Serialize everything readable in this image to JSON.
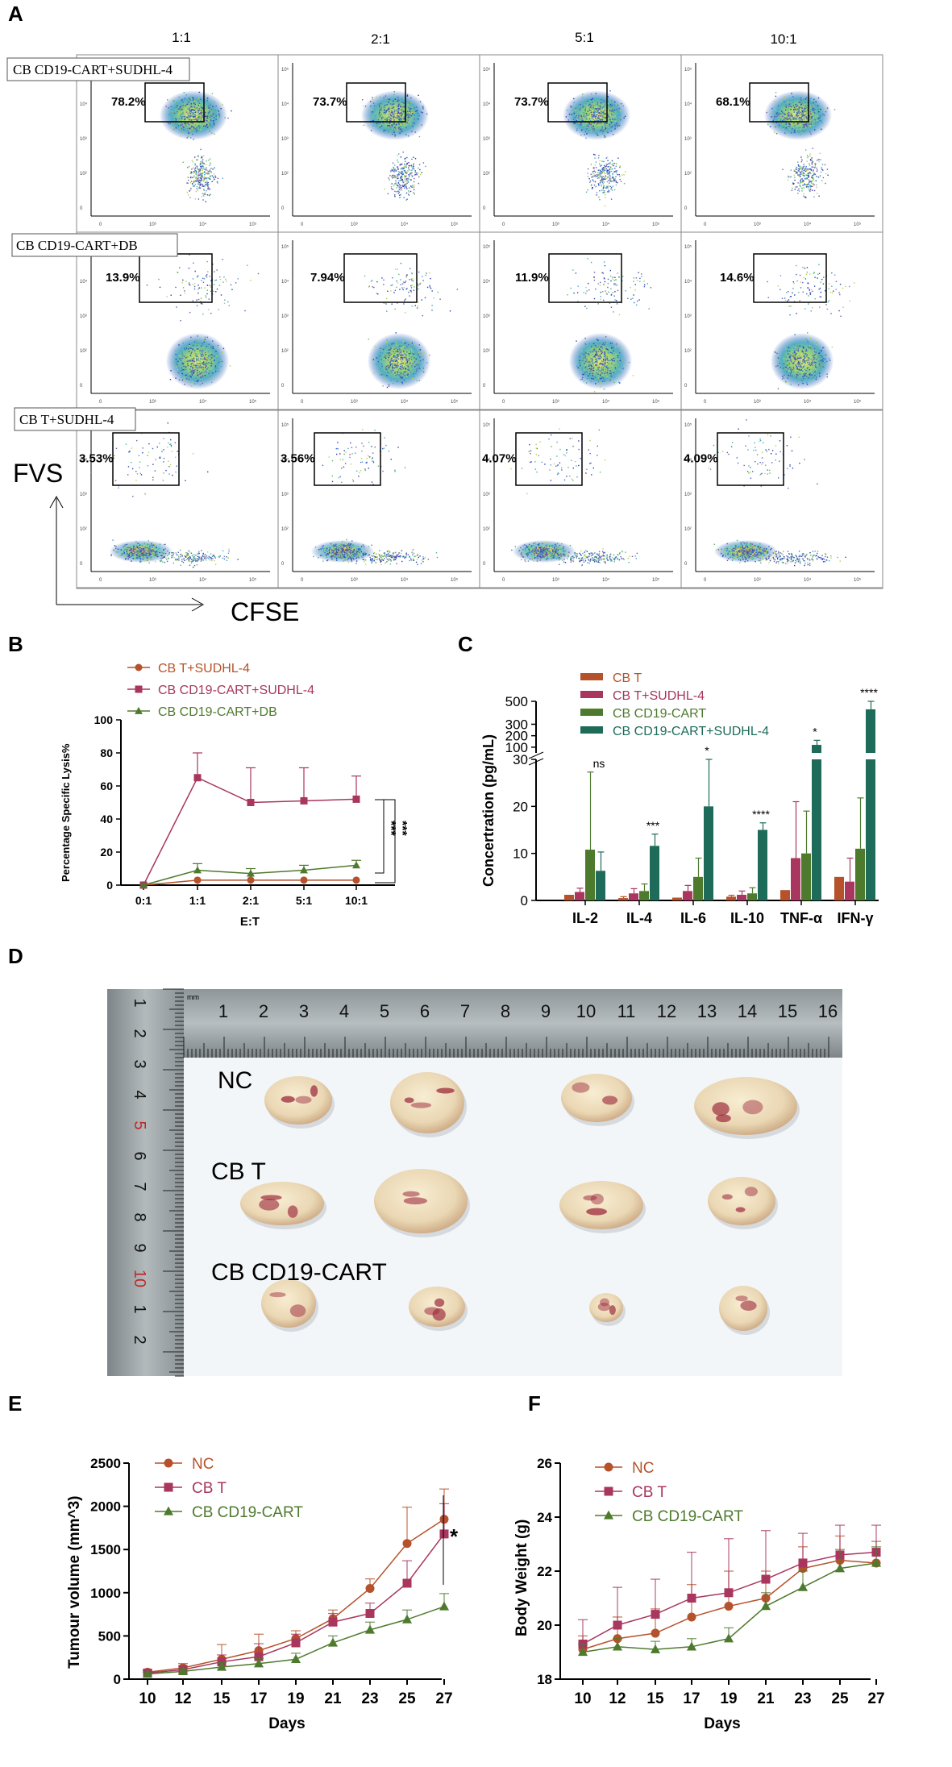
{
  "colors": {
    "orange": "#B5522B",
    "magenta": "#A8365E",
    "olive": "#4E7A2E",
    "teal": "#1E6B5A",
    "darkred": "#9E2A2A"
  },
  "panelA": {
    "letter": "A",
    "columns": [
      "1:1",
      "2:1",
      "5:1",
      "10:1"
    ],
    "rows": [
      {
        "label": "CB CD19-CART+SUDHL-4",
        "percents": [
          "78.2%",
          "73.7%",
          "73.7%",
          "68.1%"
        ],
        "pattern": "high"
      },
      {
        "label": "CB CD19-CART+DB",
        "percents": [
          "13.9%",
          "7.94%",
          "11.9%",
          "14.6%"
        ],
        "pattern": "mid"
      },
      {
        "label": "CB T+SUDHL-4",
        "percents": [
          "3.53%",
          "3.56%",
          "4.07%",
          "4.09%"
        ],
        "pattern": "low"
      }
    ],
    "yaxis": "FVS",
    "xaxis": "CFSE",
    "ticks": {
      "x": [
        "0",
        "10³",
        "10⁴",
        "10⁵"
      ],
      "y": [
        "10⁵",
        "10⁴",
        "10³",
        "10²",
        "0"
      ]
    }
  },
  "panelB": {
    "letter": "B",
    "chart_data": {
      "type": "line",
      "categories": [
        "0:1",
        "1:1",
        "2:1",
        "5:1",
        "10:1"
      ],
      "xlabel": "E:T",
      "ylabel": "Percentage Specific Lysis%",
      "ylim": [
        0,
        100
      ],
      "yticks": [
        0,
        20,
        40,
        60,
        80,
        100
      ],
      "series": [
        {
          "name": "CB T+SUDHL-4",
          "values": [
            0,
            3,
            3,
            3,
            3
          ],
          "err": [
            0,
            0,
            0,
            0,
            0
          ],
          "color": "#B5522B",
          "marker": "circle"
        },
        {
          "name": "CB CD19-CART+SUDHL-4",
          "values": [
            0,
            65,
            50,
            51,
            52
          ],
          "err": [
            0,
            15,
            21,
            20,
            14
          ],
          "color": "#A8365E",
          "marker": "square"
        },
        {
          "name": "CB CD19-CART+DB",
          "values": [
            0,
            9,
            7,
            9,
            12
          ],
          "err": [
            0,
            4,
            3,
            3,
            3
          ],
          "color": "#4E7A2E",
          "marker": "triangle"
        }
      ],
      "significance": [
        "***",
        "***"
      ]
    }
  },
  "panelC": {
    "letter": "C",
    "chart_data": {
      "type": "bar",
      "categories": [
        "IL-2",
        "IL-4",
        "IL-6",
        "IL-10",
        "TNF-α",
        "IFN-γ"
      ],
      "ylabel": "Concertration (pg/mL)",
      "lower_ticks": [
        "0",
        "10",
        "20",
        "30"
      ],
      "upper_ticks": [
        "100",
        "200",
        "300",
        "500"
      ],
      "series": [
        {
          "name": "CB T",
          "values": [
            1.2,
            0.5,
            0.6,
            0.8,
            2.2,
            5
          ],
          "err": [
            0,
            0.3,
            0,
            0.3,
            0,
            0
          ],
          "color": "#B5522B"
        },
        {
          "name": "CB T+SUDHL-4",
          "values": [
            1.8,
            1.5,
            2,
            1.2,
            9,
            4
          ],
          "err": [
            0.8,
            1,
            1.2,
            0.8,
            12,
            5
          ],
          "color": "#A8365E"
        },
        {
          "name": "CB CD19-CART",
          "values": [
            10.8,
            2,
            5,
            1.5,
            10,
            11
          ],
          "err": [
            16.5,
            1.5,
            4,
            1.2,
            9,
            10.8
          ],
          "color": "#4E7A2E"
        },
        {
          "name": "CB CD19-CART+SUDHL-4",
          "values": [
            6.3,
            11.6,
            20,
            15,
            120,
            430
          ],
          "err": [
            4,
            2.5,
            10,
            1.5,
            40,
            70
          ],
          "color": "#1E6B5A"
        }
      ],
      "significance": [
        "ns",
        "***",
        "*",
        "****",
        "*",
        "****"
      ]
    }
  },
  "panelD": {
    "letter": "D",
    "groups": [
      "NC",
      "CB T",
      "CB CD19-CART"
    ],
    "ruler_top": [
      "1",
      "2",
      "3",
      "4",
      "5",
      "6",
      "7",
      "8",
      "9",
      "10",
      "11",
      "12",
      "13",
      "14",
      "15",
      "16"
    ],
    "ruler_side": [
      "1",
      "2",
      "3",
      "4",
      "5",
      "6",
      "7",
      "8",
      "9",
      "10",
      "1",
      "2"
    ],
    "ruler_unit": "mm"
  },
  "panelE": {
    "letter": "E",
    "chart_data": {
      "type": "line",
      "x": [
        10,
        12,
        15,
        17,
        19,
        21,
        23,
        25,
        27
      ],
      "xlabel": "Days",
      "ylabel": "Tumour volume (mm^3)",
      "ylim": [
        0,
        2500
      ],
      "yticks": [
        0,
        500,
        1000,
        1500,
        2000,
        2500
      ],
      "series": [
        {
          "name": "NC",
          "values": [
            80,
            130,
            230,
            330,
            470,
            700,
            1050,
            1570,
            1850
          ],
          "err": [
            30,
            50,
            170,
            190,
            90,
            100,
            110,
            420,
            350
          ],
          "color": "#B5522B",
          "marker": "circle"
        },
        {
          "name": "CB T",
          "values": [
            70,
            110,
            200,
            260,
            420,
            660,
            760,
            1110,
            1680
          ],
          "err": [
            25,
            40,
            80,
            150,
            100,
            100,
            120,
            260,
            350
          ],
          "color": "#A8365E",
          "marker": "square"
        },
        {
          "name": "CB CD19-CART",
          "values": [
            60,
            90,
            140,
            180,
            230,
            420,
            570,
            690,
            840
          ],
          "err": [
            20,
            30,
            50,
            60,
            70,
            80,
            90,
            110,
            150
          ],
          "color": "#4E7A2E",
          "marker": "triangle"
        }
      ],
      "significance": "*"
    }
  },
  "panelF": {
    "letter": "F",
    "chart_data": {
      "type": "line",
      "x": [
        10,
        12,
        15,
        17,
        19,
        21,
        23,
        25,
        27
      ],
      "xlabel": "Days",
      "ylabel": "Body Weight (g)",
      "ylim": [
        18,
        26
      ],
      "yticks": [
        18,
        20,
        22,
        24,
        26
      ],
      "series": [
        {
          "name": "NC",
          "values": [
            19.1,
            19.5,
            19.7,
            20.3,
            20.7,
            21.0,
            22.1,
            22.4,
            22.3
          ],
          "err": [
            0.5,
            0.8,
            0.9,
            1.2,
            1.3,
            1.0,
            0.8,
            0.9,
            0.8
          ],
          "color": "#B5522B",
          "marker": "circle"
        },
        {
          "name": "CB T",
          "values": [
            19.3,
            20.0,
            20.4,
            21.0,
            21.2,
            21.7,
            22.3,
            22.6,
            22.7
          ],
          "err": [
            0.9,
            1.4,
            1.3,
            1.7,
            2.0,
            1.8,
            1.1,
            1.1,
            1.0
          ],
          "color": "#A8365E",
          "marker": "square"
        },
        {
          "name": "CB CD19-CART",
          "values": [
            19.0,
            19.2,
            19.1,
            19.2,
            19.5,
            20.7,
            21.4,
            22.1,
            22.3
          ],
          "err": [
            0.3,
            0.3,
            0.3,
            0.3,
            0.4,
            0.5,
            0.6,
            0.7,
            0.6
          ],
          "color": "#4E7A2E",
          "marker": "triangle"
        }
      ]
    }
  }
}
